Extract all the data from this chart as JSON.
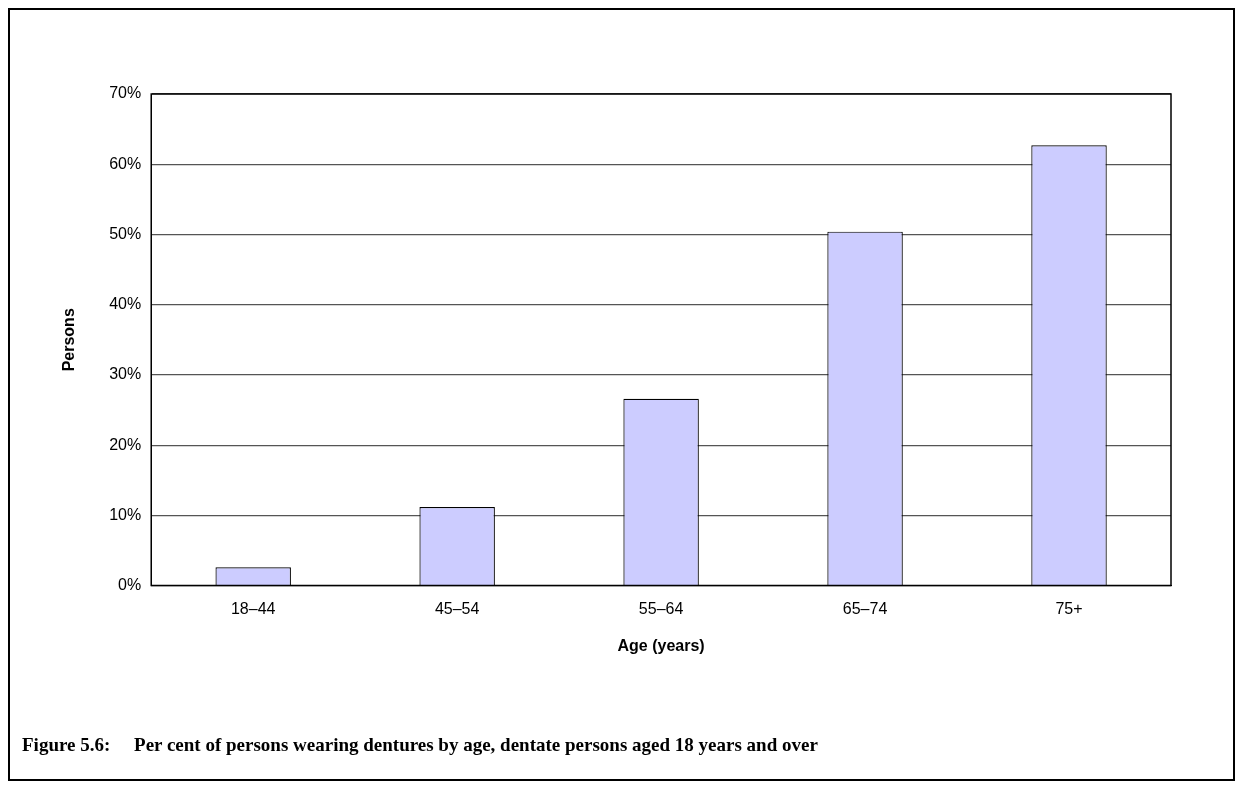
{
  "chart_data": {
    "type": "bar",
    "title": "Figure 5.6:     Per cent of persons wearing dentures by age, dentate persons aged 18 years and over",
    "xlabel": "Age (years)",
    "ylabel": "Persons",
    "categories": [
      "18–44",
      "45–54",
      "55–64",
      "65–74",
      "75+"
    ],
    "values": [
      2.6,
      11.2,
      26.6,
      50.4,
      62.7
    ],
    "color": "#ccccff",
    "ylim": [
      0,
      70
    ],
    "yticks": [
      {
        "value": 0,
        "label": "0%"
      },
      {
        "value": 10,
        "label": "10%"
      },
      {
        "value": 20,
        "label": "20%"
      },
      {
        "value": 30,
        "label": "30%"
      },
      {
        "value": 40,
        "label": "40%"
      },
      {
        "value": 50,
        "label": "50%"
      },
      {
        "value": 60,
        "label": "60%"
      },
      {
        "value": 70,
        "label": "70%"
      }
    ],
    "grid": "y"
  }
}
